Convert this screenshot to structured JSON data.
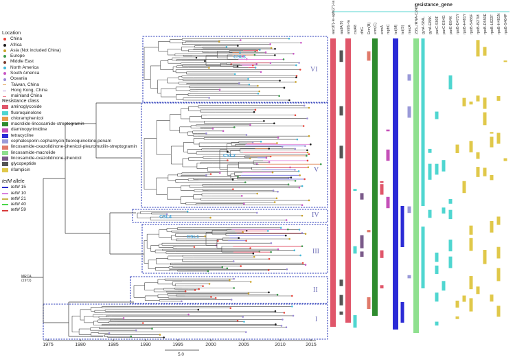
{
  "location_legend": {
    "title": "Location",
    "items": [
      {
        "label": "China",
        "color": "#e8453c",
        "kind": "dot"
      },
      {
        "label": "Africa",
        "color": "#1a1a1a",
        "kind": "dot"
      },
      {
        "label": "Asia (Not included China)",
        "color": "#c9a227",
        "kind": "dot"
      },
      {
        "label": "Europe",
        "color": "#3a9a4a",
        "kind": "dot"
      },
      {
        "label": "Middle East",
        "color": "#7a3a2a",
        "kind": "dot"
      },
      {
        "label": "North America",
        "color": "#42b8d8",
        "kind": "dot"
      },
      {
        "label": "South America",
        "color": "#c855c4",
        "kind": "dot"
      },
      {
        "label": "Oceania",
        "color": "#9a8ad6",
        "kind": "dot"
      },
      {
        "label": "Taiwan, China",
        "color": "#e0a050",
        "kind": "dash"
      },
      {
        "label": "Hong Kong, China",
        "color": "#b08ad8",
        "kind": "dash"
      },
      {
        "label": "mainland China",
        "color": "#f08090",
        "kind": "dash"
      }
    ]
  },
  "resistance_legend": {
    "title": "Resistance class",
    "items": [
      {
        "label": "aminoglycoside",
        "color": "#e0566a"
      },
      {
        "label": "fluoroquinolone",
        "color": "#4fd6d0"
      },
      {
        "label": "chloramphenicol",
        "color": "#e89a4a"
      },
      {
        "label": "macrolide-lincosamide-streptogramin",
        "color": "#2e8b2e"
      },
      {
        "label": "diaminopyrimidine",
        "color": "#c44fb8"
      },
      {
        "label": "tetracycline",
        "color": "#2b2bd6"
      },
      {
        "label": "cephalosporin-cephamycin-fluoroquinolone-penam",
        "color": "#9a9ad8"
      },
      {
        "label": "lincosamide-oxazolidinone-phenicol-pleuromutilin-streptogramin",
        "color": "#e07a6a"
      },
      {
        "label": "lincosamide-macrolide",
        "color": "#8fe08f"
      },
      {
        "label": "lincosamide-oxazolidinone-phenicol",
        "color": "#7a5a8a"
      },
      {
        "label": "glycopeptide",
        "color": "#555555"
      },
      {
        "label": "rifampicin",
        "color": "#e0c84a"
      }
    ]
  },
  "allele_legend": {
    "title_prefix": "tetM",
    "title_suffix": "allele",
    "items": [
      {
        "prefix": "tetM",
        "num": "15",
        "color": "#2a2acc"
      },
      {
        "prefix": "tetM",
        "num": "10",
        "color": "#d880e0"
      },
      {
        "prefix": "tetM",
        "num": "21",
        "color": "#c8b44a"
      },
      {
        "prefix": "tetM",
        "num": "40",
        "color": "#4ad84a"
      },
      {
        "prefix": "tetM",
        "num": "59",
        "color": "#d83a3a"
      }
    ]
  },
  "clades": [
    "VI",
    "V",
    "IV",
    "III",
    "II",
    "I"
  ],
  "csl": [
    "CSL1",
    "CSL2",
    "CSL3",
    "CSL4"
  ],
  "axis_years": [
    "1975",
    "1980",
    "1985",
    "1990",
    "1995",
    "2000",
    "2005",
    "2010",
    "2015"
  ],
  "mrca_label": [
    "MRCA",
    "(1972)"
  ],
  "scale_label": "5.0",
  "gene_header": "resistance_gene",
  "genes": [
    "aac(6')-Ie-aph(2'')-Ia",
    "aadA(9)",
    "ant(6)-Ia",
    "catA8",
    "dfrG",
    "Erm(B)",
    "erm(C)",
    "ermA",
    "mphC",
    "tet(M)",
    "tet(S)",
    "mecA",
    "23S_rRNA-C2487",
    "gyrA-S84L",
    "gyrA-E88K",
    "parC-S80F",
    "parC-E84G",
    "parE-E84K",
    "rpoB-D471Y",
    "rpoB-H481Y",
    "rpoB-S486F",
    "rpoB-I527M",
    "rpoB-D550E",
    "rpoB-L622F",
    "rpoB-H481N",
    "rpoB-S464P"
  ]
}
